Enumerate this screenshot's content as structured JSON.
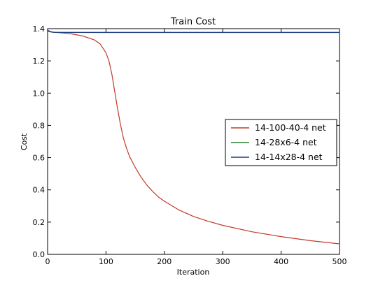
{
  "chart_data": {
    "type": "line",
    "title": "Train Cost",
    "xlabel": "Iteration",
    "ylabel": "Cost",
    "xlim": [
      0,
      500
    ],
    "ylim": [
      0.0,
      1.4
    ],
    "xticks": [
      "0",
      "100",
      "200",
      "300",
      "400",
      "500"
    ],
    "xtick_values": [
      0,
      100,
      200,
      300,
      400,
      500
    ],
    "yticks": [
      "0.0",
      "0.2",
      "0.4",
      "0.6",
      "0.8",
      "1.0",
      "1.2",
      "1.4"
    ],
    "ytick_values": [
      0.0,
      0.2,
      0.4,
      0.6,
      0.8,
      1.0,
      1.2,
      1.4
    ],
    "grid": false,
    "legend_position": "center-right",
    "series": [
      {
        "name": "14-100-40-4 net",
        "color": "#c0392b",
        "x": [
          0,
          5,
          10,
          20,
          40,
          60,
          80,
          90,
          100,
          105,
          110,
          115,
          120,
          125,
          130,
          135,
          140,
          150,
          160,
          170,
          180,
          190,
          200,
          225,
          250,
          275,
          300,
          350,
          400,
          450,
          500
        ],
        "y": [
          1.39,
          1.382,
          1.378,
          1.375,
          1.368,
          1.355,
          1.33,
          1.305,
          1.25,
          1.2,
          1.12,
          1.01,
          0.9,
          0.8,
          0.72,
          0.66,
          0.61,
          0.54,
          0.48,
          0.43,
          0.39,
          0.355,
          0.33,
          0.275,
          0.235,
          0.205,
          0.18,
          0.14,
          0.11,
          0.085,
          0.065
        ]
      },
      {
        "name": "14-28x6-4 net",
        "color": "#2e7d32",
        "x": [
          0,
          5,
          10,
          20,
          50,
          100,
          200,
          300,
          400,
          500
        ],
        "y": [
          1.385,
          1.379,
          1.377,
          1.377,
          1.376,
          1.376,
          1.376,
          1.376,
          1.376,
          1.376
        ]
      },
      {
        "name": "14-14x28-4 net",
        "color": "#1f3a93",
        "x": [
          0,
          5,
          10,
          20,
          50,
          100,
          200,
          300,
          400,
          500
        ],
        "y": [
          1.39,
          1.381,
          1.378,
          1.377,
          1.377,
          1.377,
          1.377,
          1.377,
          1.377,
          1.377
        ]
      }
    ]
  }
}
